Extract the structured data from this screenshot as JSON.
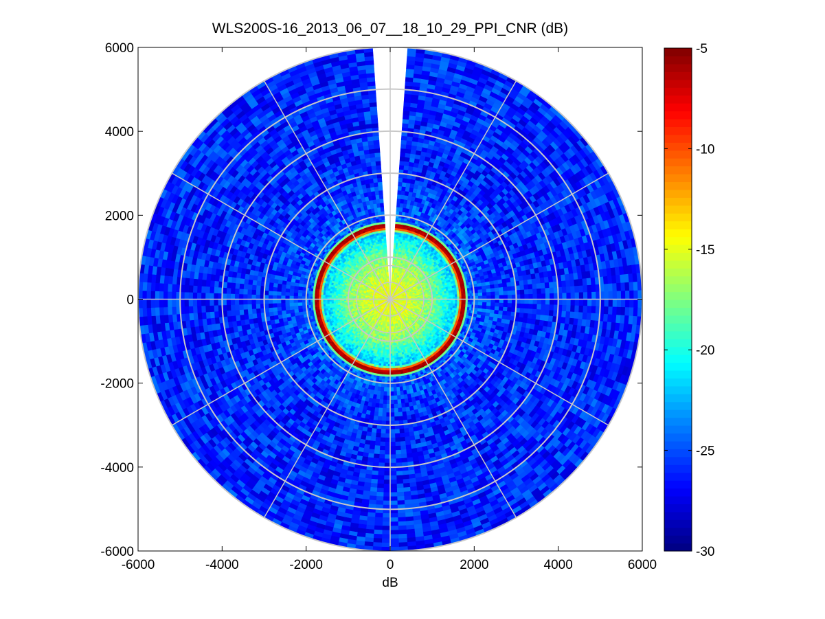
{
  "chart_data": {
    "type": "heatmap",
    "title": "WLS200S-16_2013_06_07__18_10_29_PPI_CNR (dB)",
    "xlabel": "dB",
    "ylabel": "",
    "xlim": [
      -6000,
      6000
    ],
    "ylim": [
      -6000,
      6000
    ],
    "xticks": [
      -6000,
      -4000,
      -2000,
      0,
      2000,
      4000,
      6000
    ],
    "yticks": [
      -6000,
      -4000,
      -2000,
      0,
      2000,
      4000,
      6000
    ],
    "xtick_labels": [
      "-6000",
      "-4000",
      "-2000",
      "0",
      "2000",
      "4000",
      "6000"
    ],
    "ytick_labels": [
      "6000",
      "4000",
      "2000",
      "0",
      "-2000",
      "-4000",
      "-6000"
    ],
    "projection": "polar (PPI scan)",
    "max_range": 6000,
    "range_ring_values": [
      1000,
      2000,
      3000,
      4000,
      5000,
      6000
    ],
    "spoke_angles_deg": [
      0,
      30,
      60,
      90,
      120,
      150,
      180,
      210,
      240,
      270,
      300,
      330
    ],
    "missing_sector_deg": [
      -4,
      4
    ],
    "radial_profile": [
      {
        "range": 0,
        "value": -14.5
      },
      {
        "range": 500,
        "value": -15.5
      },
      {
        "range": 1000,
        "value": -17.5
      },
      {
        "range": 1400,
        "value": -20.5
      },
      {
        "range": 1600,
        "value": -22
      },
      {
        "range": 1700,
        "value": -6.5
      },
      {
        "range": 1780,
        "value": -6
      },
      {
        "range": 1850,
        "value": -24.5
      },
      {
        "range": 3000,
        "value": -26
      },
      {
        "range": 6000,
        "value": -26
      }
    ],
    "colorbar": {
      "colormap": "jet",
      "clim": [
        -30,
        -5
      ],
      "ticks": [
        -5,
        -10,
        -15,
        -20,
        -25,
        -30
      ],
      "tick_labels": [
        "-5",
        "-10",
        "-15",
        "-20",
        "-25",
        "-30"
      ]
    },
    "grid": true
  },
  "style": {
    "grid_color": "#c8c8c8",
    "axis_color": "#000000",
    "background": "#ffffff"
  }
}
